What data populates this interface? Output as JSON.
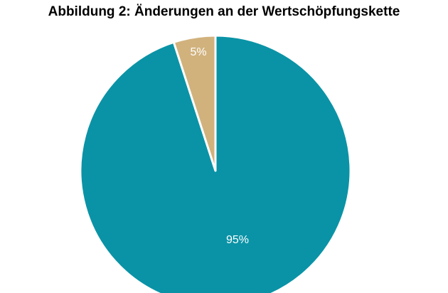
{
  "chart_data": {
    "type": "pie",
    "title": "Abbildung 2: Änderungen an der Wertschöpfungskette",
    "slices": [
      {
        "value": 95,
        "label": "95%",
        "color": "#0a93a6"
      },
      {
        "value": 5,
        "label": "5%",
        "color": "#d1b27d"
      }
    ],
    "start": "top",
    "direction": "counterclockwise-first-slice"
  }
}
